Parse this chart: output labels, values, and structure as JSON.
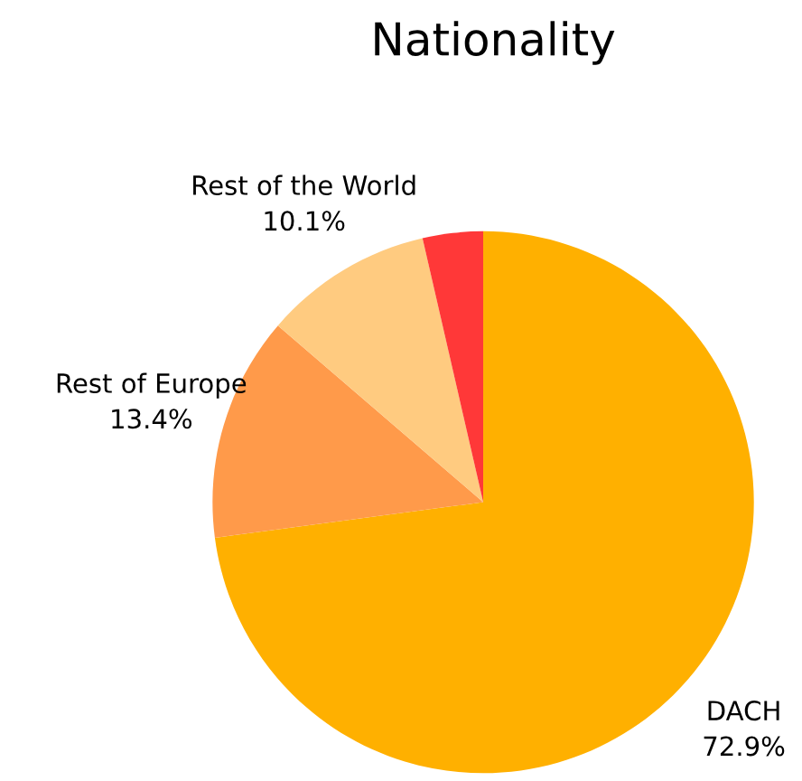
{
  "chart_data": {
    "type": "pie",
    "title": "Nationality",
    "categories": [
      "DACH",
      "Rest of Europe",
      "Rest of the World",
      null
    ],
    "values": [
      72.9,
      13.4,
      10.1,
      3.6
    ],
    "value_labels": [
      "72.9%",
      "13.4%",
      "10.1%",
      null
    ],
    "colors": [
      "#ffb000",
      "#ff9a4a",
      "#ffcb80",
      "#ff3838"
    ],
    "legend": false
  }
}
